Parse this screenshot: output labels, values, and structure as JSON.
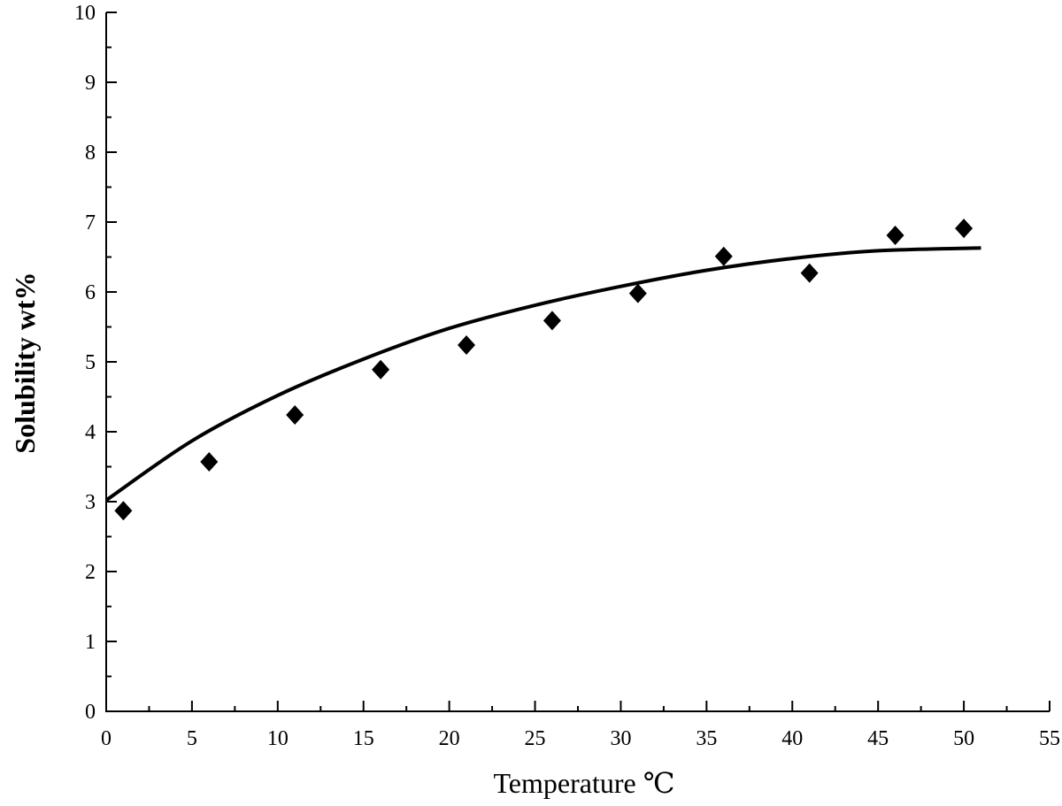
{
  "chart_data": {
    "type": "scatter",
    "xlabel": "Temperature ℃",
    "ylabel": "Solubility wt%",
    "xlim": [
      0,
      55
    ],
    "ylim": [
      0,
      10
    ],
    "x_ticks": [
      0,
      5,
      10,
      15,
      20,
      25,
      30,
      35,
      40,
      45,
      50,
      55
    ],
    "y_ticks": [
      0,
      1,
      2,
      3,
      4,
      5,
      6,
      7,
      8,
      9,
      10
    ],
    "grid": false,
    "marker": "diamond",
    "series": [
      {
        "x": [
          1,
          6,
          11,
          16,
          21,
          26,
          31,
          36,
          41,
          46,
          50
        ],
        "y": [
          2.87,
          3.57,
          4.24,
          4.89,
          5.24,
          5.59,
          5.98,
          6.51,
          6.27,
          6.81,
          6.91
        ]
      }
    ],
    "fit_curve": {
      "x": [
        0,
        5,
        10,
        15,
        20,
        25,
        30,
        35,
        40,
        45,
        51
      ],
      "y": [
        3.02,
        3.87,
        4.52,
        5.04,
        5.48,
        5.81,
        6.08,
        6.31,
        6.48,
        6.59,
        6.63
      ]
    }
  }
}
